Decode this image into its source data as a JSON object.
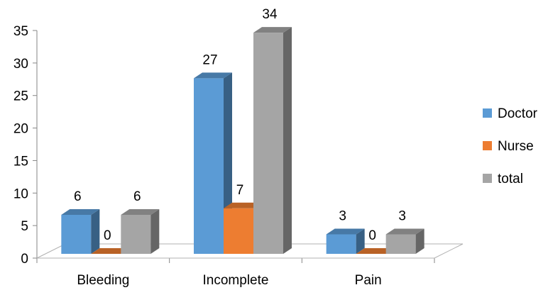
{
  "chart_data": {
    "type": "bar",
    "style": "3d-clustered-column",
    "categories": [
      "Bleeding",
      "Incomplete",
      "Pain"
    ],
    "series": [
      {
        "name": "Doctor",
        "values": [
          6,
          27,
          3
        ],
        "color": "#5B9BD5"
      },
      {
        "name": "Nurse",
        "values": [
          0,
          7,
          0
        ],
        "color": "#ED7D31"
      },
      {
        "name": "total",
        "values": [
          6,
          34,
          3
        ],
        "color": "#A5A5A5"
      }
    ],
    "yticks": [
      0,
      5,
      10,
      15,
      20,
      25,
      30,
      35
    ],
    "ylim": [
      0,
      35
    ],
    "legend_position": "right",
    "grid": false
  }
}
